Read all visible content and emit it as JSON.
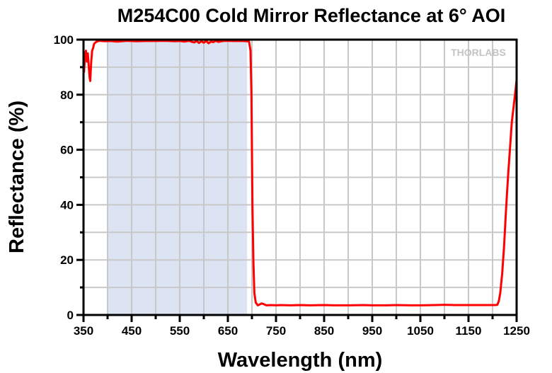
{
  "chart_data": {
    "type": "line",
    "title": "M254C00 Cold Mirror Reflectance at 6° AOI",
    "xlabel": "Wavelength (nm)",
    "ylabel": "Reflectance (%)",
    "xlim": [
      350,
      1250
    ],
    "ylim": [
      0,
      100
    ],
    "x_ticks": [
      350,
      450,
      550,
      650,
      750,
      850,
      950,
      1050,
      1150,
      1250
    ],
    "x_minor_ticks": [
      400,
      500,
      600,
      700,
      800,
      900,
      1000,
      1100,
      1200
    ],
    "y_ticks": [
      0,
      20,
      40,
      60,
      80,
      100
    ],
    "y_minor_ticks": [
      10,
      30,
      50,
      70,
      90
    ],
    "grid": true,
    "shaded_region": {
      "x_start": 400,
      "x_end": 690,
      "color": "#dce4f4"
    },
    "logo_text": "THORLABS",
    "series": [
      {
        "name": "Reflectance",
        "color": "#ff0000",
        "x": [
          351,
          353,
          355,
          357,
          359,
          361,
          363,
          364,
          366,
          368,
          370,
          372,
          375,
          378,
          382,
          388,
          395,
          405,
          420,
          440,
          460,
          480,
          500,
          520,
          540,
          550,
          560,
          570,
          575,
          580,
          585,
          590,
          595,
          600,
          605,
          610,
          615,
          620,
          625,
          630,
          640,
          650,
          660,
          670,
          680,
          690,
          694,
          697,
          699,
          700,
          701,
          703,
          705,
          708,
          712,
          716,
          720,
          725,
          730,
          740,
          750,
          760,
          780,
          800,
          820,
          850,
          870,
          900,
          930,
          950,
          980,
          1000,
          1030,
          1050,
          1080,
          1100,
          1120,
          1150,
          1170,
          1190,
          1200,
          1205,
          1210,
          1213,
          1216,
          1220,
          1224,
          1228,
          1232,
          1236,
          1240,
          1244,
          1248,
          1250
        ],
        "y": [
          88,
          94,
          96,
          92,
          95,
          90,
          86,
          85,
          92,
          96,
          97,
          98.5,
          99,
          99.3,
          99.6,
          99.5,
          99.4,
          99.5,
          99.3,
          99.6,
          99.4,
          99.5,
          99.5,
          99.6,
          99.4,
          99.5,
          99.3,
          99.6,
          99.2,
          99.0,
          99.5,
          98.8,
          99.4,
          98.9,
          99.5,
          98.7,
          99.3,
          99.1,
          99.6,
          99.2,
          99.5,
          99.6,
          99.5,
          99.5,
          99.5,
          99.4,
          99.3,
          96,
          80,
          60,
          40,
          20,
          8,
          4.5,
          3.5,
          3.8,
          4.2,
          3.9,
          3.5,
          3.6,
          3.5,
          3.6,
          3.5,
          3.6,
          3.5,
          3.6,
          3.5,
          3.5,
          3.6,
          3.5,
          3.5,
          3.6,
          3.5,
          3.5,
          3.6,
          3.7,
          3.6,
          3.6,
          3.6,
          3.6,
          3.6,
          3.6,
          3.7,
          5,
          8,
          15,
          25,
          38,
          50,
          60,
          70,
          76,
          82,
          85.5
        ]
      }
    ]
  }
}
